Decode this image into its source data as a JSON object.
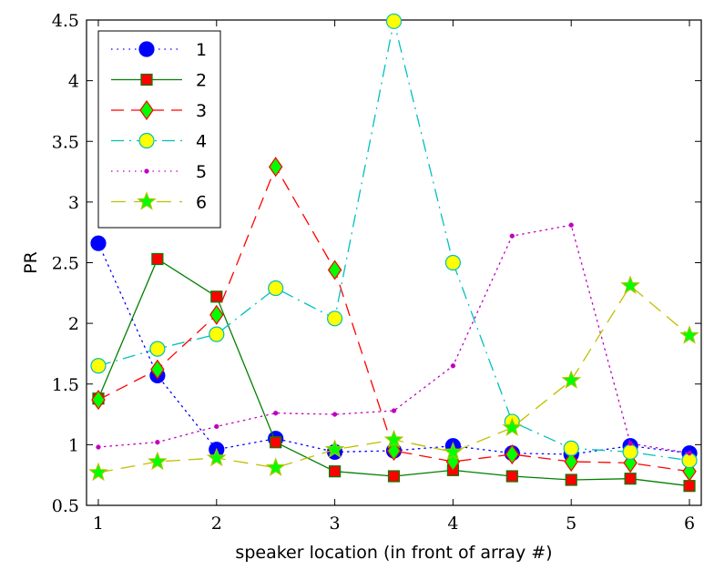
{
  "chart_data": {
    "type": "line",
    "xlabel": "speaker location (in front of array #)",
    "ylabel": "PR",
    "xlim": [
      0.9,
      6.1
    ],
    "ylim": [
      0.5,
      4.5
    ],
    "xticks": [
      "1",
      "2",
      "3",
      "4",
      "5",
      "6"
    ],
    "yticks": [
      "0.5",
      "1",
      "1.5",
      "2",
      "2.5",
      "3",
      "3.5",
      "4",
      "4.5"
    ],
    "grid": false,
    "legend_position": "top-left",
    "x": [
      1,
      1.5,
      2,
      2.5,
      3,
      3.5,
      4,
      4.5,
      5,
      5.5,
      6
    ],
    "series": [
      {
        "name": "1",
        "values": [
          2.66,
          1.57,
          0.96,
          1.05,
          0.94,
          0.95,
          0.99,
          0.93,
          0.92,
          0.99,
          0.93
        ],
        "color": "#0000ff",
        "line_style": "dotted",
        "marker": "circle",
        "marker_fill": "#0000ff",
        "marker_edge": "#0000ff"
      },
      {
        "name": "2",
        "values": [
          1.38,
          2.53,
          2.22,
          1.02,
          0.78,
          0.74,
          0.79,
          0.74,
          0.71,
          0.72,
          0.66
        ],
        "color": "#007f00",
        "line_style": "solid",
        "marker": "square",
        "marker_fill": "#ff0000",
        "marker_edge": "#007f00"
      },
      {
        "name": "3",
        "values": [
          1.37,
          1.62,
          2.07,
          3.29,
          2.44,
          0.95,
          0.86,
          0.92,
          0.86,
          0.85,
          0.78
        ],
        "color": "#ff0000",
        "line_style": "dashed",
        "marker": "diamond",
        "marker_fill": "#00ff00",
        "marker_edge": "#ff0000"
      },
      {
        "name": "4",
        "values": [
          1.65,
          1.79,
          1.91,
          2.29,
          2.04,
          4.49,
          2.5,
          1.19,
          0.97,
          0.94,
          0.87
        ],
        "color": "#00bfbf",
        "line_style": "dashdot",
        "marker": "circle",
        "marker_fill": "#ffff00",
        "marker_edge": "#00bfbf"
      },
      {
        "name": "5",
        "values": [
          0.98,
          1.02,
          1.15,
          1.26,
          1.25,
          1.28,
          1.65,
          2.72,
          2.81,
          1.01,
          0.93
        ],
        "color": "#bf00bf",
        "line_style": "dotted",
        "marker": "dot",
        "marker_fill": "#bf00bf",
        "marker_edge": "#bf00bf"
      },
      {
        "name": "6",
        "values": [
          0.77,
          0.86,
          0.89,
          0.81,
          0.96,
          1.04,
          0.94,
          1.14,
          1.53,
          2.31,
          1.9
        ],
        "color": "#bfbf00",
        "line_style": "longdash",
        "marker": "star",
        "marker_fill": "#00ff00",
        "marker_edge": "#bfbf00"
      }
    ]
  }
}
